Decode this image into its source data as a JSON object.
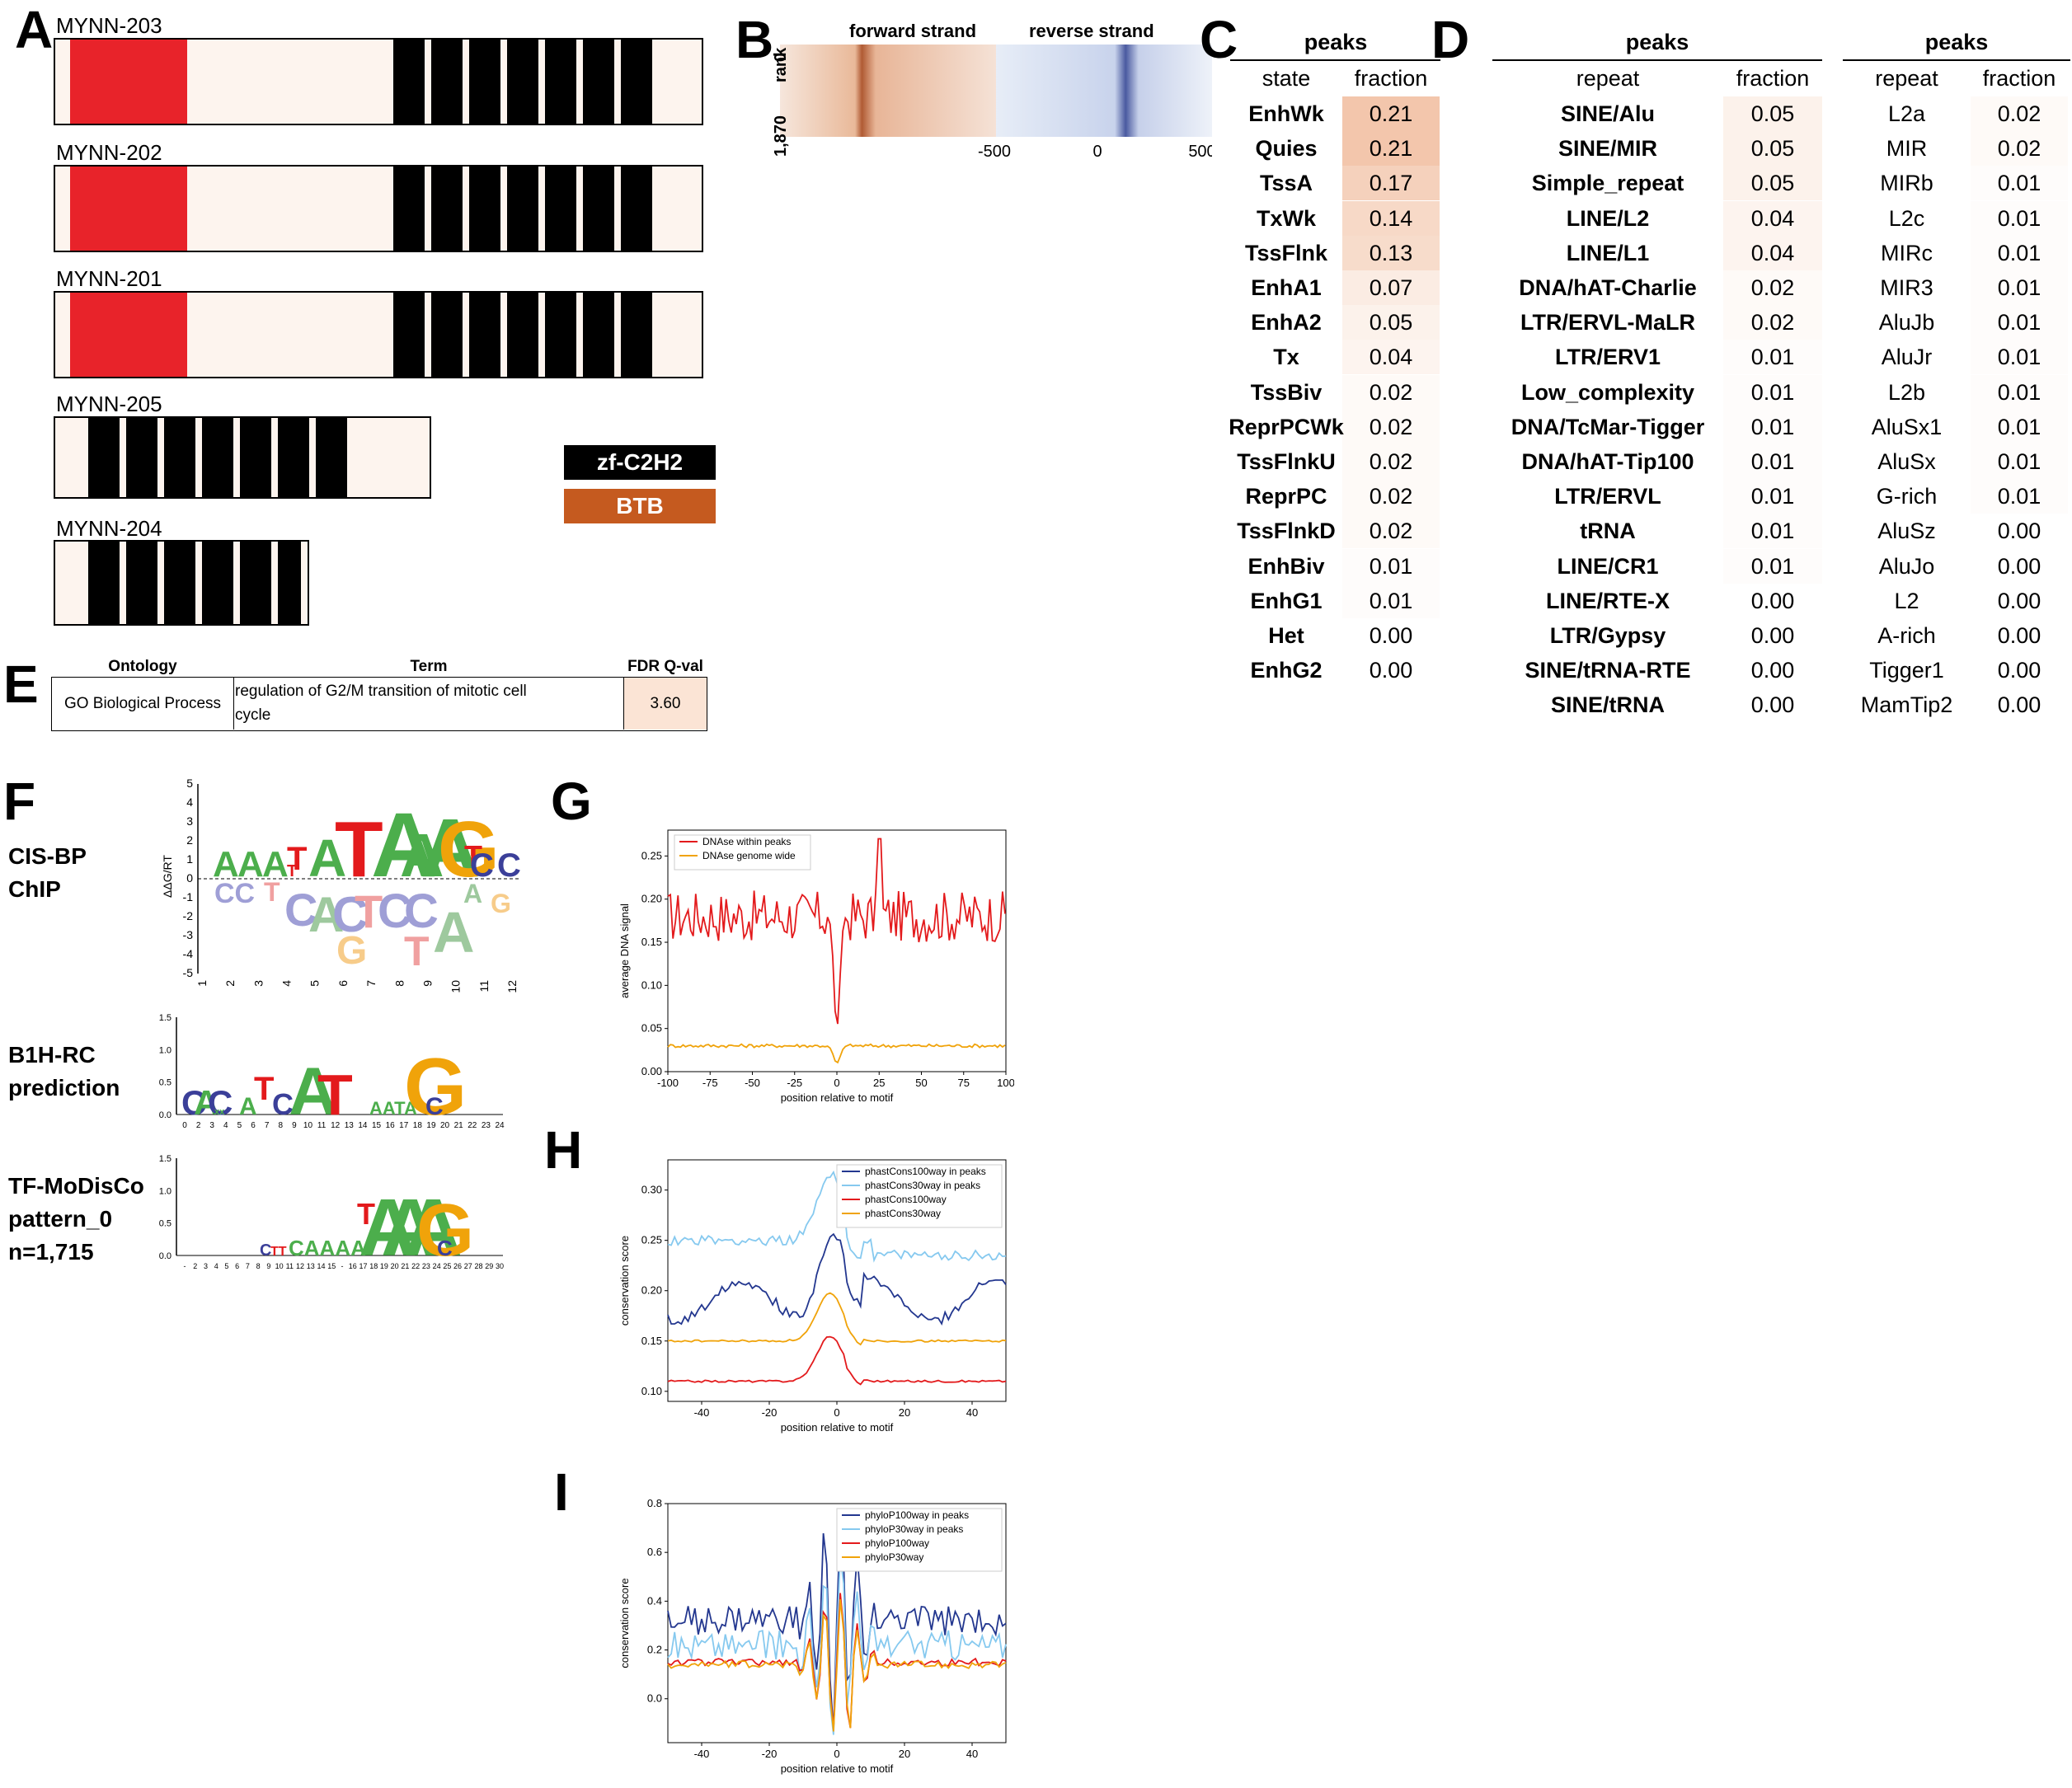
{
  "panel_labels": {
    "A": "A",
    "B": "B",
    "C": "C",
    "D": "D",
    "E": "E",
    "F": "F",
    "G": "G",
    "H": "H",
    "I": "I"
  },
  "panelA": {
    "isoforms": [
      {
        "name": "MYNN-203"
      },
      {
        "name": "MYNN-202"
      },
      {
        "name": "MYNN-201"
      },
      {
        "name": "MYNN-205"
      },
      {
        "name": "MYNN-204"
      }
    ],
    "legend": {
      "zf": "zf-C2H2",
      "btb": "BTB"
    },
    "colors": {
      "zf": "#000000",
      "btb": "#e8232a",
      "btb_legend": "#c55a1f",
      "bar_fill": "#fdf4ee"
    }
  },
  "panelB": {
    "forward_label": "forward strand",
    "reverse_label": "reverse strand",
    "rank_label": "rank",
    "rank_top": "0",
    "rank_bottom": "1,870",
    "x_ticks": [
      "-500",
      "0",
      "500"
    ]
  },
  "panelC": {
    "title": "peaks",
    "col_state": "state",
    "col_fraction": "fraction",
    "rows": [
      {
        "state": "EnhWk",
        "fraction": "0.21"
      },
      {
        "state": "Quies",
        "fraction": "0.21"
      },
      {
        "state": "TssA",
        "fraction": "0.17"
      },
      {
        "state": "TxWk",
        "fraction": "0.14"
      },
      {
        "state": "TssFlnk",
        "fraction": "0.13"
      },
      {
        "state": "EnhA1",
        "fraction": "0.07"
      },
      {
        "state": "EnhA2",
        "fraction": "0.05"
      },
      {
        "state": "Tx",
        "fraction": "0.04"
      },
      {
        "state": "TssBiv",
        "fraction": "0.02"
      },
      {
        "state": "ReprPCWk",
        "fraction": "0.02"
      },
      {
        "state": "TssFlnkU",
        "fraction": "0.02"
      },
      {
        "state": "ReprPC",
        "fraction": "0.02"
      },
      {
        "state": "TssFlnkD",
        "fraction": "0.02"
      },
      {
        "state": "EnhBiv",
        "fraction": "0.01"
      },
      {
        "state": "EnhG1",
        "fraction": "0.01"
      },
      {
        "state": "Het",
        "fraction": "0.00"
      },
      {
        "state": "EnhG2",
        "fraction": "0.00"
      }
    ]
  },
  "panelD1": {
    "title": "peaks",
    "col_repeat": "repeat",
    "col_fraction": "fraction",
    "rows": [
      {
        "repeat": "SINE/Alu",
        "fraction": "0.05"
      },
      {
        "repeat": "SINE/MIR",
        "fraction": "0.05"
      },
      {
        "repeat": "Simple_repeat",
        "fraction": "0.05"
      },
      {
        "repeat": "LINE/L2",
        "fraction": "0.04"
      },
      {
        "repeat": "LINE/L1",
        "fraction": "0.04"
      },
      {
        "repeat": "DNA/hAT-Charlie",
        "fraction": "0.02"
      },
      {
        "repeat": "LTR/ERVL-MaLR",
        "fraction": "0.02"
      },
      {
        "repeat": "LTR/ERV1",
        "fraction": "0.01"
      },
      {
        "repeat": "Low_complexity",
        "fraction": "0.01"
      },
      {
        "repeat": "DNA/TcMar-Tigger",
        "fraction": "0.01"
      },
      {
        "repeat": "DNA/hAT-Tip100",
        "fraction": "0.01"
      },
      {
        "repeat": "LTR/ERVL",
        "fraction": "0.01"
      },
      {
        "repeat": "tRNA",
        "fraction": "0.01"
      },
      {
        "repeat": "LINE/CR1",
        "fraction": "0.01"
      },
      {
        "repeat": "LINE/RTE-X",
        "fraction": "0.00"
      },
      {
        "repeat": "LTR/Gypsy",
        "fraction": "0.00"
      },
      {
        "repeat": "SINE/tRNA-RTE",
        "fraction": "0.00"
      },
      {
        "repeat": "SINE/tRNA",
        "fraction": "0.00"
      }
    ]
  },
  "panelD2": {
    "title": "peaks",
    "col_repeat": "repeat",
    "col_fraction": "fraction",
    "rows": [
      {
        "repeat": "L2a",
        "fraction": "0.02"
      },
      {
        "repeat": "MIR",
        "fraction": "0.02"
      },
      {
        "repeat": "MIRb",
        "fraction": "0.01"
      },
      {
        "repeat": "L2c",
        "fraction": "0.01"
      },
      {
        "repeat": "MIRc",
        "fraction": "0.01"
      },
      {
        "repeat": "MIR3",
        "fraction": "0.01"
      },
      {
        "repeat": "AluJb",
        "fraction": "0.01"
      },
      {
        "repeat": "AluJr",
        "fraction": "0.01"
      },
      {
        "repeat": "L2b",
        "fraction": "0.01"
      },
      {
        "repeat": "AluSx1",
        "fraction": "0.01"
      },
      {
        "repeat": "AluSx",
        "fraction": "0.01"
      },
      {
        "repeat": "G-rich",
        "fraction": "0.01"
      },
      {
        "repeat": "AluSz",
        "fraction": "0.00"
      },
      {
        "repeat": "AluJo",
        "fraction": "0.00"
      },
      {
        "repeat": "L2",
        "fraction": "0.00"
      },
      {
        "repeat": "A-rich",
        "fraction": "0.00"
      },
      {
        "repeat": "Tigger1",
        "fraction": "0.00"
      },
      {
        "repeat": "MamTip2",
        "fraction": "0.00"
      }
    ]
  },
  "panelE": {
    "col_ontology": "Ontology",
    "col_term": "Term",
    "col_fdr": "FDR Q-val",
    "ontology": "GO Biological Process",
    "term_line1": "regulation of G2/M transition of mitotic cell",
    "term_line2": "cycle",
    "fdr": "3.60"
  },
  "panelF": {
    "labels": [
      {
        "line1": "CIS-BP",
        "line2": "ChIP",
        "line3": ""
      },
      {
        "line1": "B1H-RC",
        "line2": "prediction",
        "line3": ""
      },
      {
        "line1": "TF-MoDisCo",
        "line2": "pattern_0",
        "line3": "n=1,715"
      }
    ],
    "ylabel_cisbp": "ΔΔG/RT",
    "cisbp_yticks": [
      "5",
      "4",
      "3",
      "2",
      "1",
      "0",
      "-1",
      "-2",
      "-3",
      "-4",
      "-5"
    ],
    "cisbp_xticks": [
      "1",
      "2",
      "3",
      "4",
      "5",
      "6",
      "7",
      "8",
      "9",
      "10",
      "11",
      "12"
    ],
    "b1h_yticks": [
      "1.5",
      "1.0",
      "0.5",
      "0.0"
    ],
    "b1h_xticks": [
      "0",
      "2",
      "3",
      "4",
      "5",
      "6",
      "7",
      "8",
      "9",
      "10",
      "11",
      "12",
      "13",
      "14",
      "15",
      "16",
      "17",
      "18",
      "19",
      "20",
      "21",
      "22",
      "23",
      "24"
    ],
    "tfm_yticks": [
      "1.5",
      "1.0",
      "0.5",
      "0.0"
    ],
    "tfm_xticks": [
      "-",
      "2",
      "3",
      "4",
      "5",
      "6",
      "7",
      "8",
      "9",
      "10",
      "11",
      "12",
      "13",
      "14",
      "15",
      "-",
      "16",
      "17",
      "18",
      "19",
      "20",
      "21",
      "22",
      "23",
      "24",
      "25",
      "26",
      "27",
      "28",
      "29",
      "30"
    ]
  },
  "chart_data": [
    {
      "type": "line",
      "id": "G",
      "xlabel": "position relative to motif",
      "ylabel": "average DNA signal",
      "xlim": [
        -100,
        100
      ],
      "ylim": [
        0,
        0.28
      ],
      "x_ticks": [
        "-100",
        "-75",
        "-50",
        "-25",
        "0",
        "25",
        "50",
        "75",
        "100"
      ],
      "y_ticks": [
        "0.00",
        "0.05",
        "0.10",
        "0.15",
        "0.20",
        "0.25"
      ],
      "legend_position": "top-left",
      "series": [
        {
          "name": "DNAse within peaks",
          "color": "#e31a1c"
        },
        {
          "name": "DNAse genome wide",
          "color": "#f0a30a"
        }
      ]
    },
    {
      "type": "line",
      "id": "H",
      "xlabel": "position relative to motif",
      "ylabel": "conservation score",
      "xlim": [
        -50,
        50
      ],
      "ylim": [
        0.09,
        0.33
      ],
      "x_ticks": [
        "-40",
        "-20",
        "0",
        "20",
        "40"
      ],
      "y_ticks": [
        "0.10",
        "0.15",
        "0.20",
        "0.25",
        "0.30"
      ],
      "legend_position": "top-right",
      "series": [
        {
          "name": "phastCons100way in peaks",
          "color": "#23378f"
        },
        {
          "name": "phastCons30way in peaks",
          "color": "#86c9ef"
        },
        {
          "name": "phastCons100way",
          "color": "#e31a1c"
        },
        {
          "name": "phastCons30way",
          "color": "#f0a30a"
        }
      ]
    },
    {
      "type": "line",
      "id": "I",
      "xlabel": "position relative to motif",
      "ylabel": "conservation score",
      "xlim": [
        -50,
        50
      ],
      "ylim": [
        -0.18,
        0.8
      ],
      "x_ticks": [
        "-40",
        "-20",
        "0",
        "20",
        "40"
      ],
      "y_ticks": [
        "0.0",
        "0.2",
        "0.4",
        "0.6",
        "0.8"
      ],
      "legend_position": "top-right",
      "series": [
        {
          "name": "phyloP100way in peaks",
          "color": "#23378f"
        },
        {
          "name": "phyloP30way in peaks",
          "color": "#86c9ef"
        },
        {
          "name": "phyloP100way",
          "color": "#e31a1c"
        },
        {
          "name": "phyloP30way",
          "color": "#f0a30a"
        }
      ]
    }
  ]
}
